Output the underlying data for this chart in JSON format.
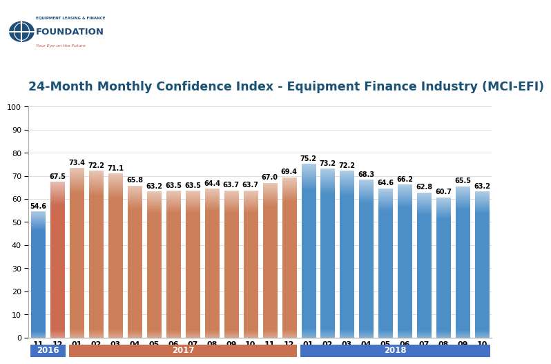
{
  "title": "24-Month Monthly Confidence Index - Equipment Finance Industry (MCI-EFI)",
  "months": [
    "11",
    "12",
    "01",
    "02",
    "03",
    "04",
    "05",
    "06",
    "07",
    "08",
    "09",
    "10",
    "11",
    "12",
    "01",
    "02",
    "03",
    "04",
    "05",
    "06",
    "07",
    "08",
    "09",
    "10"
  ],
  "years": [
    "2016",
    "2016",
    "2017",
    "2017",
    "2017",
    "2017",
    "2017",
    "2017",
    "2017",
    "2017",
    "2017",
    "2017",
    "2017",
    "2017",
    "2018",
    "2018",
    "2018",
    "2018",
    "2018",
    "2018",
    "2018",
    "2018",
    "2018",
    "2018"
  ],
  "values": [
    54.6,
    67.5,
    73.4,
    72.2,
    71.1,
    65.8,
    63.2,
    63.5,
    63.5,
    64.4,
    63.7,
    63.7,
    67.0,
    69.4,
    75.2,
    73.2,
    72.2,
    68.3,
    64.6,
    66.2,
    62.8,
    60.7,
    65.5,
    63.2
  ],
  "bar_color_2016_nov": [
    0.28,
    0.53,
    0.78
  ],
  "bar_color_2016_dec": [
    0.8,
    0.42,
    0.32
  ],
  "bar_color_2017": [
    0.8,
    0.5,
    0.35
  ],
  "bar_color_2018": [
    0.3,
    0.56,
    0.78
  ],
  "year_band_2016_color": "#4472c4",
  "year_band_2017_color": "#c97050",
  "year_band_2018_color": "#4472c4",
  "ylim": [
    0,
    100
  ],
  "yticks": [
    0,
    10,
    20,
    30,
    40,
    50,
    60,
    70,
    80,
    90,
    100
  ],
  "title_color": "#1a5276",
  "title_fontsize": 12.5,
  "value_fontsize": 7,
  "tick_label_fontsize": 8,
  "year_label_fontsize": 8.5,
  "background_color": "#ffffff",
  "grid_color": "#dddddd",
  "bar_width": 0.72
}
